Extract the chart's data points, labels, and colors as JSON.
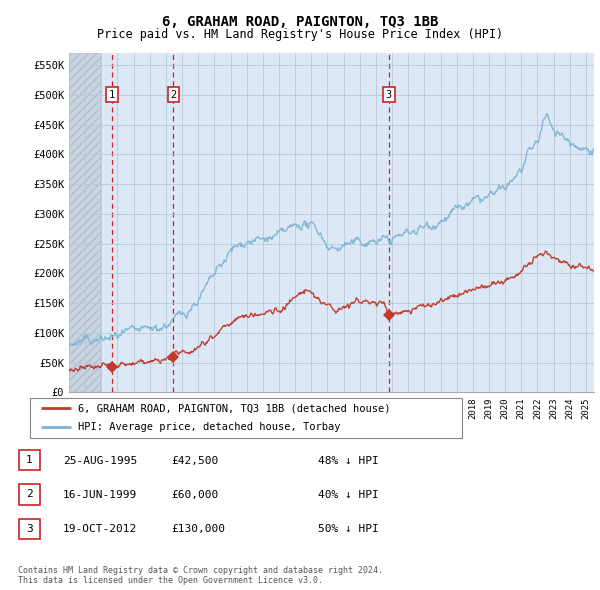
{
  "title": "6, GRAHAM ROAD, PAIGNTON, TQ3 1BB",
  "subtitle": "Price paid vs. HM Land Registry's House Price Index (HPI)",
  "ylabel_ticks": [
    "£0",
    "£50K",
    "£100K",
    "£150K",
    "£200K",
    "£250K",
    "£300K",
    "£350K",
    "£400K",
    "£450K",
    "£500K",
    "£550K"
  ],
  "ytick_values": [
    0,
    50000,
    100000,
    150000,
    200000,
    250000,
    300000,
    350000,
    400000,
    450000,
    500000,
    550000
  ],
  "xmin": 1993.0,
  "xmax": 2025.5,
  "ymin": 0,
  "ymax": 570000,
  "hpi_color": "#7ab3d4",
  "price_color": "#c0392b",
  "purchase_dates": [
    1995.648,
    1999.458,
    2012.797
  ],
  "purchase_prices": [
    42500,
    60000,
    130000
  ],
  "purchase_labels": [
    "1",
    "2",
    "3"
  ],
  "legend_line1": "6, GRAHAM ROAD, PAIGNTON, TQ3 1BB (detached house)",
  "legend_line2": "HPI: Average price, detached house, Torbay",
  "table_data": [
    [
      "1",
      "25-AUG-1995",
      "£42,500",
      "48% ↓ HPI"
    ],
    [
      "2",
      "16-JUN-1999",
      "£60,000",
      "40% ↓ HPI"
    ],
    [
      "3",
      "19-OCT-2012",
      "£130,000",
      "50% ↓ HPI"
    ]
  ],
  "footer": "Contains HM Land Registry data © Crown copyright and database right 2024.\nThis data is licensed under the Open Government Licence v3.0.",
  "hatch_xmin": 1993.0,
  "hatch_xmax": 1995.0
}
